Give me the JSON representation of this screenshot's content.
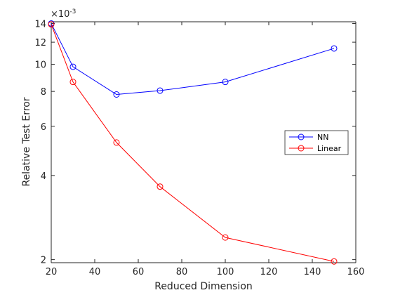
{
  "chart_data": {
    "type": "line",
    "xlabel": "Reduced Dimension",
    "ylabel": "Relative Test Error",
    "y_exponent_label": "×10",
    "y_exponent_power": "-3",
    "xlim": [
      20,
      160
    ],
    "ylim": [
      1.95,
      14.2
    ],
    "y_scale": "log",
    "x_ticks": [
      20,
      40,
      60,
      80,
      100,
      120,
      140,
      160
    ],
    "y_ticks": [
      2,
      4,
      6,
      8,
      10,
      12,
      14
    ],
    "x": [
      20,
      30,
      50,
      70,
      100,
      150
    ],
    "series": [
      {
        "name": "NN",
        "color": "#0000ff",
        "values": [
          14.0,
          9.8,
          7.8,
          8.05,
          8.65,
          11.4
        ]
      },
      {
        "name": "Linear",
        "color": "#ff0000",
        "values": [
          13.9,
          8.65,
          5.25,
          3.65,
          2.4,
          1.97
        ]
      }
    ],
    "legend_position": "right",
    "grid": false
  }
}
